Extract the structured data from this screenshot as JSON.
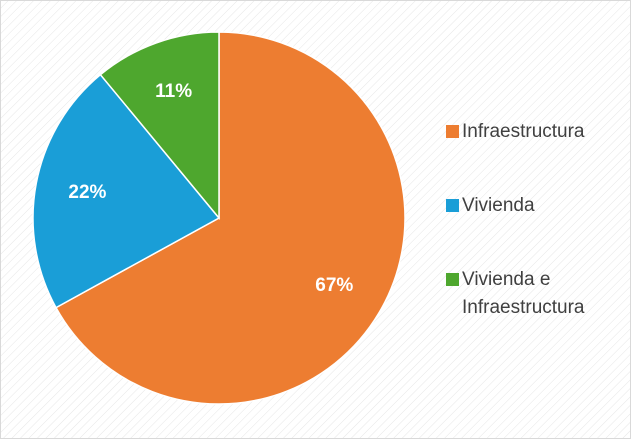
{
  "chart_data": {
    "type": "pie",
    "categories": [
      "Infraestructura",
      "Vivienda",
      "Vivienda e Infraestructura"
    ],
    "values": [
      67,
      22,
      11
    ],
    "value_labels": [
      "67%",
      "22%",
      "11%"
    ],
    "colors": [
      "#ED7D31",
      "#1A9ED7",
      "#4EA72E"
    ],
    "legend": "right"
  }
}
